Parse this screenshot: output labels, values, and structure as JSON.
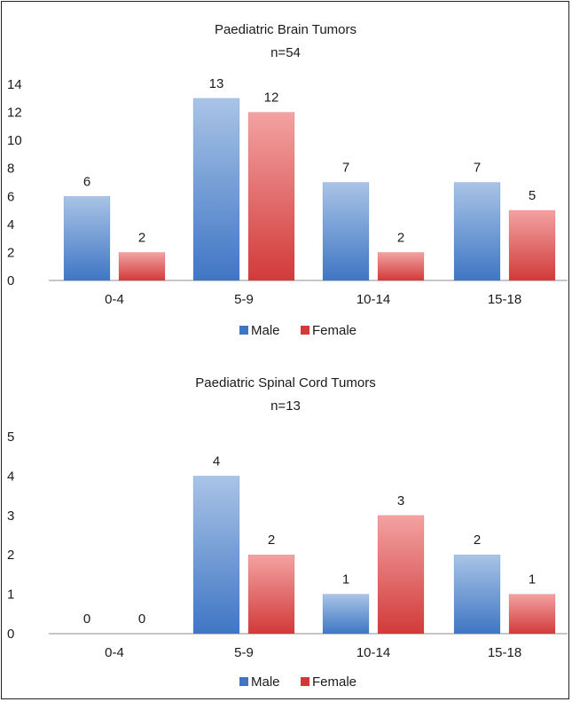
{
  "colors": {
    "male_light": "#a9c4e6",
    "male_dark": "#3f76c4",
    "female_light": "#f3a2a2",
    "female_dark": "#d23a3a",
    "axis": "#8c8c8c"
  },
  "chart_data": [
    {
      "type": "bar",
      "title": "Paediatric Brain Tumors",
      "subtitle": "n=54",
      "categories": [
        "0-4",
        "5-9",
        "10-14",
        "15-18"
      ],
      "series": [
        {
          "name": "Male",
          "values": [
            6,
            13,
            7,
            7
          ]
        },
        {
          "name": "Female",
          "values": [
            2,
            12,
            2,
            5
          ]
        }
      ],
      "ylim": [
        0,
        14
      ],
      "yticks": [
        "0",
        "2",
        "4",
        "6",
        "8",
        "10",
        "12",
        "14"
      ],
      "grid": false,
      "legend": "bottom-center",
      "data_labels": true
    },
    {
      "type": "bar",
      "title": "Paediatric Spinal Cord Tumors",
      "subtitle": "n=13",
      "categories": [
        "0-4",
        "5-9",
        "10-14",
        "15-18"
      ],
      "series": [
        {
          "name": "Male",
          "values": [
            0,
            4,
            1,
            2
          ]
        },
        {
          "name": "Female",
          "values": [
            0,
            2,
            3,
            1
          ]
        }
      ],
      "ylim": [
        0,
        5
      ],
      "yticks": [
        "0",
        "1",
        "2",
        "3",
        "4",
        "5"
      ],
      "grid": false,
      "legend": "bottom-center",
      "data_labels": true
    }
  ]
}
